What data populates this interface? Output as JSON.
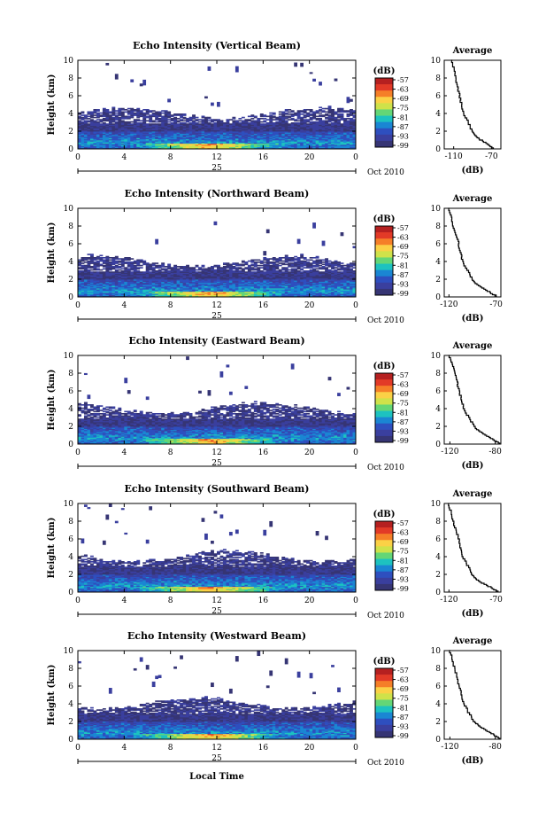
{
  "chart_data": {
    "type": "heatmap",
    "shared_xlabel": "Local Time",
    "colorbar_ticks": [
      "-57",
      "-63",
      "-69",
      "-75",
      "-81",
      "-87",
      "-93",
      "-99"
    ],
    "colorbar_colors": [
      "#b52020",
      "#e23a27",
      "#f57f28",
      "#fbd146",
      "#cfe24a",
      "#64d676",
      "#1dc2c0",
      "#1a86d3",
      "#2e4fbf",
      "#3a3f9e",
      "#363574"
    ],
    "panels": [
      {
        "title": "Echo Intensity (Vertical Beam)",
        "ylabel": "Height (km)",
        "ylim": [
          0,
          10
        ],
        "y_ticks": [
          "0",
          "2",
          "4",
          "6",
          "8",
          "10"
        ],
        "xlim": [
          0,
          24
        ],
        "x_ticks": [
          "0",
          "4",
          "8",
          "12",
          "16",
          "20",
          "0"
        ],
        "date_marker": "25",
        "date_label": "Oct 2010",
        "colorbar_label": "(dB)",
        "avg_title": "Average",
        "avg_xlabel": "(dB)",
        "avg_xlim": [
          -120,
          -60
        ],
        "avg_x_ticks": [
          -110,
          -70
        ],
        "avg_x_tick_labels": [
          "-110",
          "-70"
        ],
        "avg_profile": {
          "height_km": [
            0,
            0.5,
            1,
            1.5,
            2,
            3,
            4,
            5,
            6,
            7,
            8,
            9,
            10
          ],
          "db": [
            -68,
            -74,
            -82,
            -88,
            -91,
            -95,
            -100,
            -102,
            -104,
            -106,
            -108,
            -110,
            -112
          ]
        }
      },
      {
        "title": "Echo Intensity (Northward Beam)",
        "ylabel": "Height (km)",
        "ylim": [
          0,
          10
        ],
        "y_ticks": [
          "0",
          "2",
          "4",
          "6",
          "8",
          "10"
        ],
        "xlim": [
          0,
          24
        ],
        "x_ticks": [
          "0",
          "4",
          "8",
          "12",
          "16",
          "20",
          "0"
        ],
        "date_marker": "25",
        "date_label": "Oct 2010",
        "colorbar_label": "(dB)",
        "avg_title": "Average",
        "avg_xlabel": "(dB)",
        "avg_xlim": [
          -125,
          -65
        ],
        "avg_x_ticks": [
          -120,
          -70
        ],
        "avg_x_tick_labels": [
          "-120",
          "-70"
        ],
        "avg_profile": {
          "height_km": [
            0,
            0.5,
            1,
            1.5,
            2,
            3,
            4,
            5,
            6,
            7,
            8,
            9,
            10
          ],
          "db": [
            -70,
            -77,
            -85,
            -92,
            -96,
            -101,
            -106,
            -108,
            -110,
            -113,
            -116,
            -118,
            -121
          ]
        }
      },
      {
        "title": "Echo Intensity (Eastward Beam)",
        "ylabel": "Height (km)",
        "ylim": [
          0,
          10
        ],
        "y_ticks": [
          "0",
          "2",
          "4",
          "6",
          "8",
          "10"
        ],
        "xlim": [
          0,
          24
        ],
        "x_ticks": [
          "0",
          "4",
          "8",
          "12",
          "16",
          "20",
          "0"
        ],
        "date_marker": "25",
        "date_label": "Oct 2010",
        "colorbar_label": "(dB)",
        "avg_title": "Average",
        "avg_xlabel": "(dB)",
        "avg_xlim": [
          -125,
          -75
        ],
        "avg_x_ticks": [
          -120,
          -80
        ],
        "avg_x_tick_labels": [
          "-120",
          "-80"
        ],
        "avg_profile": {
          "height_km": [
            0,
            0.5,
            1,
            1.5,
            2,
            3,
            4,
            5,
            6,
            7,
            8,
            9,
            10
          ],
          "db": [
            -76,
            -82,
            -89,
            -95,
            -99,
            -104,
            -108,
            -110,
            -112,
            -114,
            -116,
            -118,
            -121
          ]
        }
      },
      {
        "title": "Echo Intensity (Southward Beam)",
        "ylabel": "Height (km)",
        "ylim": [
          0,
          10
        ],
        "y_ticks": [
          "0",
          "2",
          "4",
          "6",
          "8",
          "10"
        ],
        "xlim": [
          0,
          24
        ],
        "x_ticks": [
          "0",
          "4",
          "8",
          "12",
          "16",
          "20",
          "0"
        ],
        "date_marker": "25",
        "date_label": "Oct 2010",
        "colorbar_label": "(dB)",
        "avg_title": "Average",
        "avg_xlabel": "(dB)",
        "avg_xlim": [
          -125,
          -65
        ],
        "avg_x_ticks": [
          -120,
          -70
        ],
        "avg_x_tick_labels": [
          "-120",
          "-70"
        ],
        "avg_profile": {
          "height_km": [
            0,
            0.5,
            1,
            1.5,
            2,
            3,
            4,
            5,
            6,
            7,
            8,
            9,
            10
          ],
          "db": [
            -68,
            -76,
            -85,
            -92,
            -96,
            -101,
            -106,
            -108,
            -110,
            -113,
            -116,
            -118,
            -121
          ]
        }
      },
      {
        "title": "Echo Intensity (Westward Beam)",
        "ylabel": "Height (km)",
        "ylim": [
          0,
          10
        ],
        "y_ticks": [
          "0",
          "2",
          "4",
          "6",
          "8",
          "10"
        ],
        "xlim": [
          0,
          24
        ],
        "x_ticks": [
          "0",
          "4",
          "8",
          "12",
          "16",
          "20",
          "0"
        ],
        "date_marker": "25",
        "date_label": "Oct 2010",
        "colorbar_label": "(dB)",
        "avg_title": "Average",
        "avg_xlabel": "(dB)",
        "avg_xlim": [
          -125,
          -75
        ],
        "avg_x_ticks": [
          -120,
          -80
        ],
        "avg_x_tick_labels": [
          "-120",
          "-80"
        ],
        "avg_profile": {
          "height_km": [
            0,
            0.5,
            1,
            1.5,
            2,
            3,
            4,
            5,
            6,
            7,
            8,
            9,
            10
          ],
          "db": [
            -76,
            -82,
            -89,
            -95,
            -99,
            -104,
            -108,
            -110,
            -112,
            -114,
            -116,
            -118,
            -121
          ]
        }
      }
    ]
  }
}
